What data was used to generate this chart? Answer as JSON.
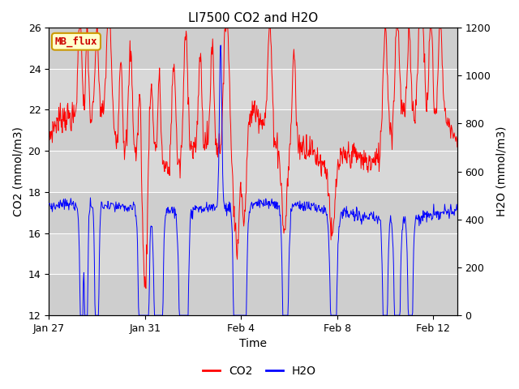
{
  "title": "LI7500 CO2 and H2O",
  "xlabel": "Time",
  "ylabel_left": "CO2 (mmol/m3)",
  "ylabel_right": "H2O (mmol/m3)",
  "co2_ylim": [
    12,
    26
  ],
  "h2o_ylim": [
    0,
    1200
  ],
  "co2_color": "#ff0000",
  "h2o_color": "#0000ff",
  "background_color": "#ffffff",
  "plot_bg_color": "#d8d8d8",
  "grid_color": "#ffffff",
  "annotation_text": "MB_flux",
  "annotation_bg": "#ffffcc",
  "annotation_border": "#cc9900",
  "xtick_labels": [
    "Jan 27",
    "Jan 31",
    "Feb 4",
    "Feb 8",
    "Feb 12"
  ],
  "legend_co2": "CO2",
  "legend_h2o": "H2O",
  "title_fontsize": 11,
  "axis_label_fontsize": 10,
  "tick_fontsize": 9,
  "legend_fontsize": 10
}
